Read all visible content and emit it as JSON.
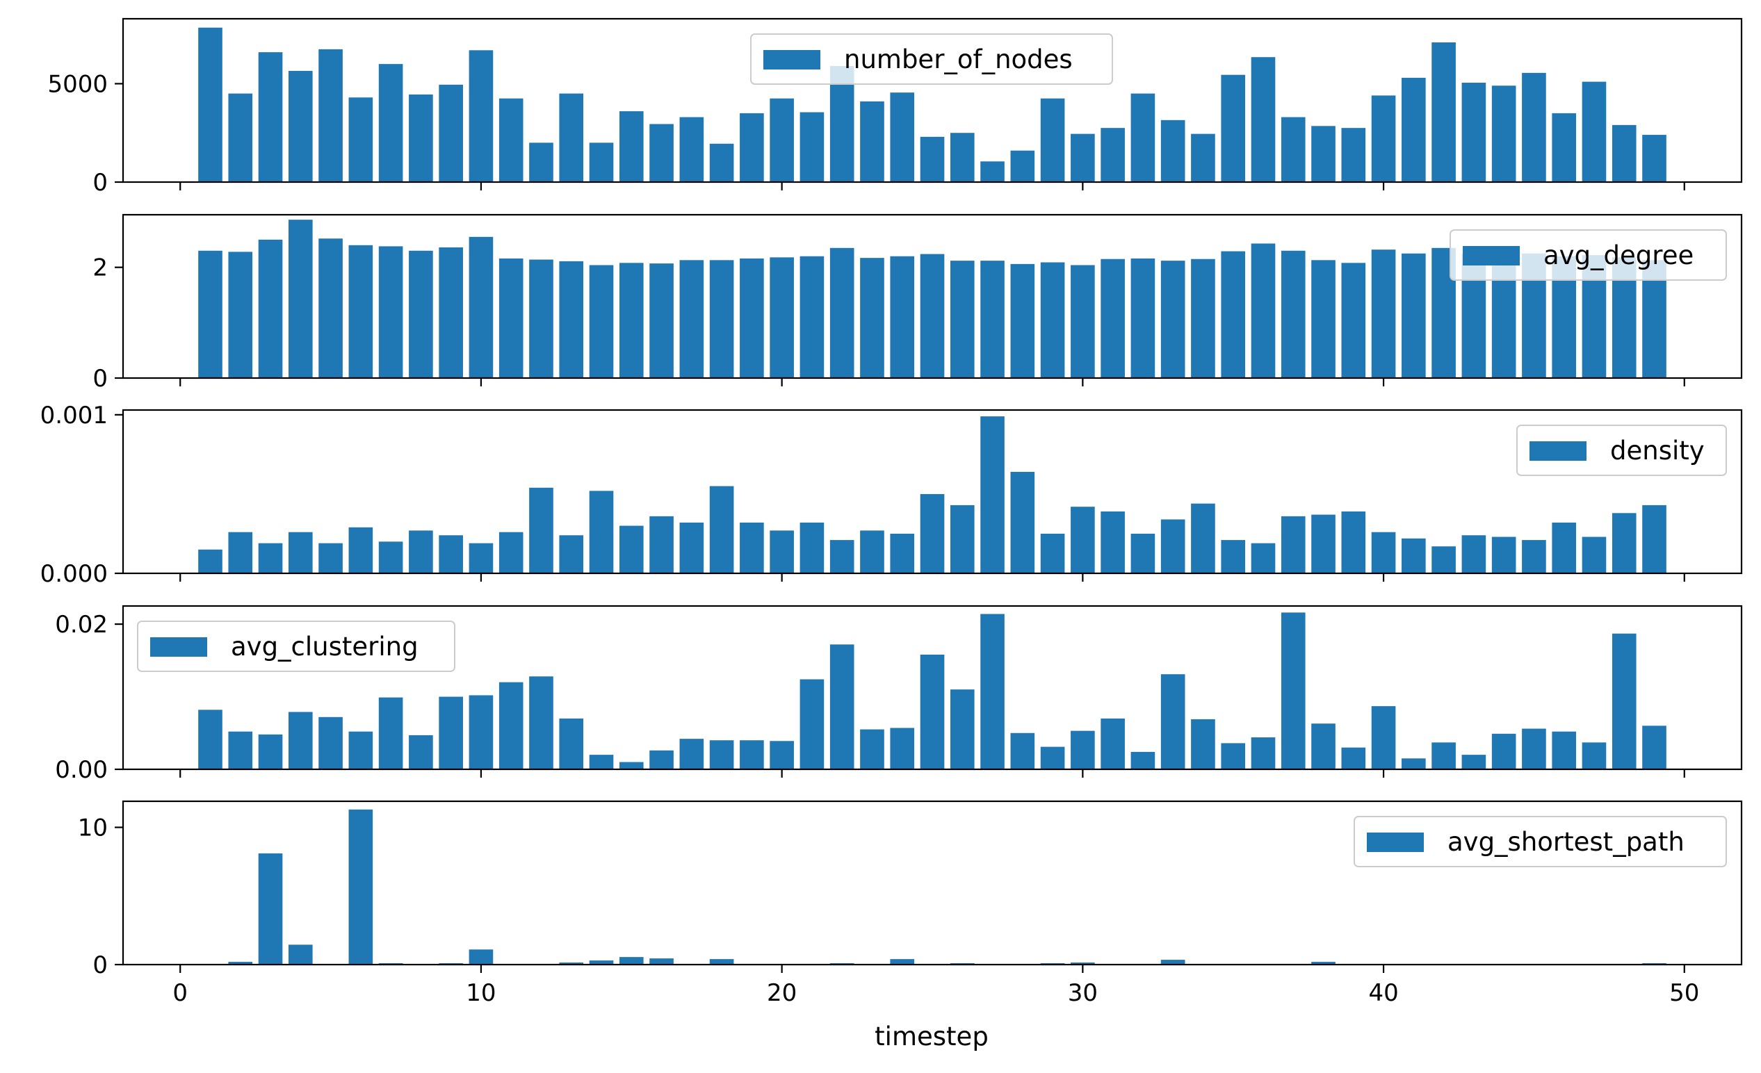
{
  "chart_data": {
    "type": "bar",
    "layout": "vertically stacked subplots sharing x axis",
    "xlabel": "timestep",
    "x_ticks": [
      "0",
      "10",
      "20",
      "30",
      "40",
      "50"
    ],
    "xlim": [
      -1.9,
      51.9
    ],
    "bar_color": "#1f77b4",
    "timesteps": [
      1,
      2,
      3,
      4,
      5,
      6,
      7,
      8,
      9,
      10,
      11,
      12,
      13,
      14,
      15,
      16,
      17,
      18,
      19,
      20,
      21,
      22,
      23,
      24,
      25,
      26,
      27,
      28,
      29,
      30,
      31,
      32,
      33,
      34,
      35,
      36,
      37,
      38,
      39,
      40,
      41,
      42,
      43,
      44,
      45,
      46,
      47,
      48,
      49
    ],
    "subplots": [
      {
        "name": "number_of_nodes",
        "legend": "number_of_nodes",
        "legend_loc": "top-center",
        "ylim": [
          0,
          8300
        ],
        "y_ticks": [
          0,
          5000
        ],
        "y_tick_labels": [
          "0",
          "5000"
        ],
        "values": [
          7850,
          4500,
          6600,
          5650,
          6750,
          4300,
          6000,
          4450,
          4950,
          6700,
          4250,
          2000,
          4500,
          2000,
          3600,
          2950,
          3300,
          1950,
          3500,
          4250,
          3550,
          5900,
          4100,
          4550,
          2300,
          2500,
          1050,
          1600,
          4250,
          2450,
          2750,
          4500,
          3150,
          2450,
          5450,
          6350,
          3300,
          2850,
          2750,
          4400,
          5300,
          7100,
          5050,
          4900,
          5550,
          3500,
          5100,
          2900,
          2400
        ]
      },
      {
        "name": "avg_degree",
        "legend": "avg_degree",
        "legend_loc": "top-right",
        "ylim": [
          0,
          2.95
        ],
        "y_ticks": [
          0,
          2
        ],
        "y_tick_labels": [
          "0",
          "2"
        ],
        "values": [
          2.3,
          2.28,
          2.5,
          2.86,
          2.52,
          2.4,
          2.38,
          2.3,
          2.36,
          2.55,
          2.16,
          2.14,
          2.11,
          2.04,
          2.08,
          2.07,
          2.13,
          2.13,
          2.16,
          2.18,
          2.2,
          2.35,
          2.17,
          2.2,
          2.24,
          2.12,
          2.12,
          2.06,
          2.09,
          2.04,
          2.15,
          2.16,
          2.12,
          2.15,
          2.29,
          2.43,
          2.3,
          2.13,
          2.08,
          2.32,
          2.25,
          2.35,
          2.25,
          2.2,
          2.25,
          2.2,
          2.22,
          2.18,
          2.13
        ]
      },
      {
        "name": "density",
        "legend": "density",
        "legend_loc": "top-right",
        "ylim": [
          0,
          0.00103
        ],
        "y_ticks": [
          0,
          0.001
        ],
        "y_tick_labels": [
          "0.000",
          "0.001"
        ],
        "values": [
          0.00015,
          0.00026,
          0.00019,
          0.00026,
          0.00019,
          0.00029,
          0.0002,
          0.00027,
          0.00024,
          0.00019,
          0.00026,
          0.00054,
          0.00024,
          0.00052,
          0.0003,
          0.00036,
          0.00032,
          0.00055,
          0.00032,
          0.00027,
          0.00032,
          0.00021,
          0.00027,
          0.00025,
          0.0005,
          0.00043,
          0.00099,
          0.00064,
          0.00025,
          0.00042,
          0.00039,
          0.00025,
          0.00034,
          0.00044,
          0.00021,
          0.00019,
          0.00036,
          0.00037,
          0.00039,
          0.00026,
          0.00022,
          0.00017,
          0.00024,
          0.00023,
          0.00021,
          0.00032,
          0.00023,
          0.00038,
          0.00043
        ]
      },
      {
        "name": "avg_clustering",
        "legend": "avg_clustering",
        "legend_loc": "top-left",
        "ylim": [
          0,
          0.0225
        ],
        "y_ticks": [
          0,
          0.02
        ],
        "y_tick_labels": [
          "0.00",
          "0.02"
        ],
        "values": [
          0.0082,
          0.0052,
          0.0048,
          0.0079,
          0.0072,
          0.0052,
          0.0099,
          0.0047,
          0.01,
          0.0102,
          0.012,
          0.0128,
          0.007,
          0.002,
          0.001,
          0.0026,
          0.0042,
          0.004,
          0.004,
          0.0039,
          0.0124,
          0.0172,
          0.0055,
          0.0057,
          0.0158,
          0.011,
          0.0214,
          0.005,
          0.0031,
          0.0053,
          0.007,
          0.0024,
          0.0131,
          0.0069,
          0.0036,
          0.0044,
          0.0216,
          0.0063,
          0.003,
          0.0087,
          0.0015,
          0.0037,
          0.002,
          0.0049,
          0.0056,
          0.0052,
          0.0037,
          0.0187,
          0.006
        ]
      },
      {
        "name": "avg_shortest_path",
        "legend": "avg_shortest_path",
        "legend_loc": "top-right",
        "ylim": [
          0,
          11.9
        ],
        "y_ticks": [
          0,
          10
        ],
        "y_tick_labels": [
          "0",
          "10"
        ],
        "values": [
          0.05,
          0.2,
          8.1,
          1.45,
          0.05,
          11.3,
          0.1,
          0.05,
          0.1,
          1.1,
          0.05,
          0.05,
          0.15,
          0.3,
          0.55,
          0.45,
          0.05,
          0.4,
          0.05,
          0.05,
          0.05,
          0.1,
          0.05,
          0.4,
          0.05,
          0.1,
          0.05,
          0.05,
          0.1,
          0.15,
          0.05,
          0.05,
          0.35,
          0.05,
          0.05,
          0.05,
          0.05,
          0.2,
          0.05,
          0.05,
          0.05,
          0.05,
          0.05,
          0.05,
          0.05,
          0.05,
          0.05,
          0.05,
          0.1
        ]
      }
    ]
  }
}
